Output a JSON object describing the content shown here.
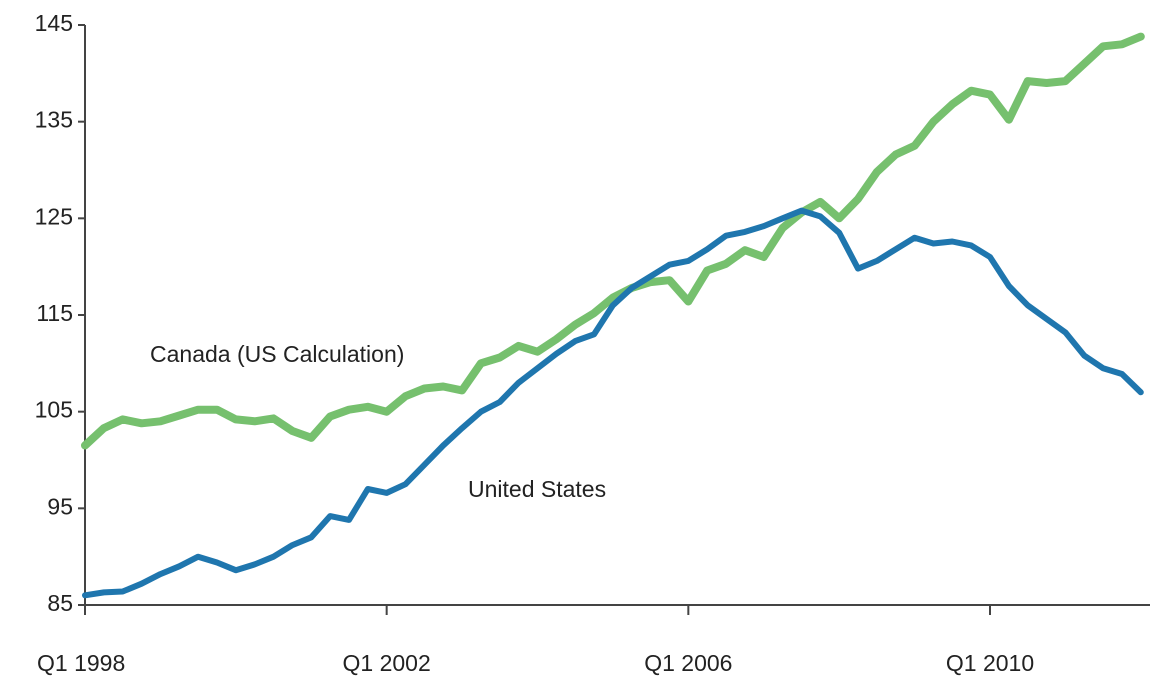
{
  "chart_data": {
    "type": "line",
    "categories": [
      "Q1 1998",
      null,
      null,
      null,
      null,
      null,
      null,
      null,
      null,
      null,
      null,
      null,
      null,
      null,
      null,
      null,
      "Q1 2002",
      null,
      null,
      null,
      null,
      null,
      null,
      null,
      null,
      null,
      null,
      null,
      null,
      null,
      null,
      null,
      "Q1 2006",
      null,
      null,
      null,
      null,
      null,
      null,
      null,
      null,
      null,
      null,
      null,
      null,
      null,
      null,
      null,
      "Q1 2010",
      null,
      null,
      null,
      null,
      null,
      null,
      null,
      null
    ],
    "series": [
      {
        "name": "Canada (US Calculation)",
        "color": "#76c06e",
        "values": [
          101.5,
          103.3,
          104.2,
          103.8,
          104,
          104.6,
          105.2,
          105.2,
          104.2,
          104,
          104.3,
          103,
          102.3,
          104.5,
          105.2,
          105.5,
          105,
          106.6,
          107.4,
          107.6,
          107.2,
          110,
          110.6,
          111.8,
          111.2,
          112.5,
          114,
          115.2,
          116.8,
          117.8,
          118.4,
          118.6,
          116.4,
          119.6,
          120.3,
          121.7,
          121,
          124,
          125.6,
          126.7,
          125,
          127,
          129.8,
          131.6,
          132.5,
          135,
          136.8,
          138.2,
          137.8,
          135.2,
          139.2,
          139,
          139.2,
          141,
          142.8,
          143,
          143.8
        ]
      },
      {
        "name": "United States",
        "color": "#1f76ae",
        "values": [
          86,
          86.3,
          86.4,
          87.2,
          88.2,
          89,
          90,
          89.4,
          88.6,
          89.2,
          90,
          91.2,
          92,
          94.2,
          93.8,
          97,
          96.6,
          97.5,
          99.5,
          101.5,
          103.3,
          105,
          106,
          108,
          109.5,
          111,
          112.3,
          113,
          116,
          117.8,
          119,
          120.2,
          120.6,
          121.8,
          123.2,
          123.6,
          124.2,
          125,
          125.8,
          125.2,
          123.5,
          119.8,
          120.6,
          121.8,
          123,
          122.4,
          122.6,
          122.2,
          121,
          118,
          116,
          114.6,
          113.2,
          110.8,
          109.5,
          108.9,
          107
        ]
      }
    ],
    "ylim": [
      85,
      145
    ],
    "yticks": [
      85,
      95,
      105,
      115,
      125,
      135,
      145
    ],
    "grid": false
  }
}
